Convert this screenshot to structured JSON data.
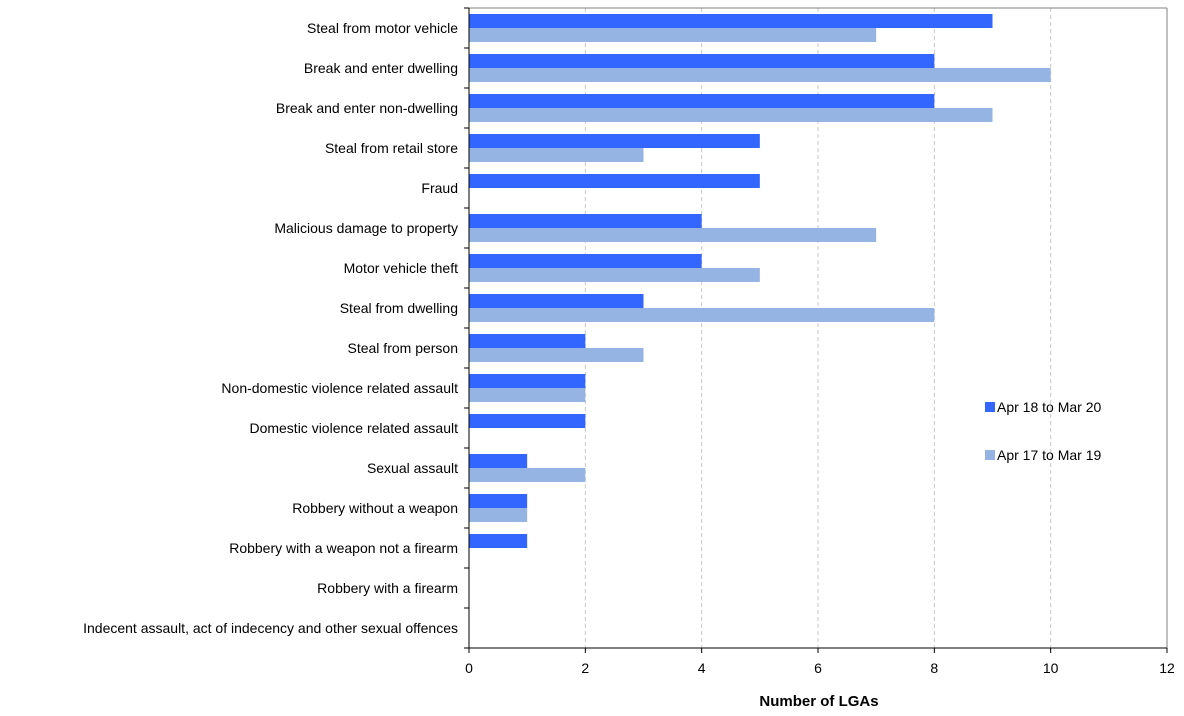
{
  "chart_data": {
    "type": "bar",
    "orientation": "horizontal",
    "categories": [
      "Steal from motor vehicle",
      "Break and enter dwelling",
      "Break and enter non-dwelling",
      "Steal from retail store",
      "Fraud",
      "Malicious damage to property",
      "Motor vehicle theft",
      "Steal from dwelling",
      "Steal from person",
      "Non-domestic violence related assault",
      "Domestic violence related assault",
      "Sexual assault",
      "Robbery without a weapon",
      "Robbery with a weapon not a firearm",
      "Robbery with a firearm",
      "Indecent assault, act of indecency and other sexual offences"
    ],
    "series": [
      {
        "name": "Apr 18 to Mar 20",
        "color": "#3366ff",
        "values": [
          9,
          8,
          8,
          5,
          5,
          4,
          4,
          3,
          2,
          2,
          2,
          1,
          1,
          1,
          0,
          0
        ]
      },
      {
        "name": "Apr 17 to Mar 19",
        "color": "#95b3e3",
        "values": [
          7,
          10,
          9,
          3,
          0,
          7,
          5,
          8,
          3,
          2,
          0,
          2,
          1,
          0,
          0,
          0
        ]
      }
    ],
    "title": "",
    "xlabel": "Number of LGAs",
    "ylabel": "",
    "xlim": [
      0,
      12
    ],
    "xticks": [
      "0",
      "2",
      "4",
      "6",
      "8",
      "10",
      "12"
    ],
    "grid": "vertical dashed",
    "legend_position": "right"
  }
}
